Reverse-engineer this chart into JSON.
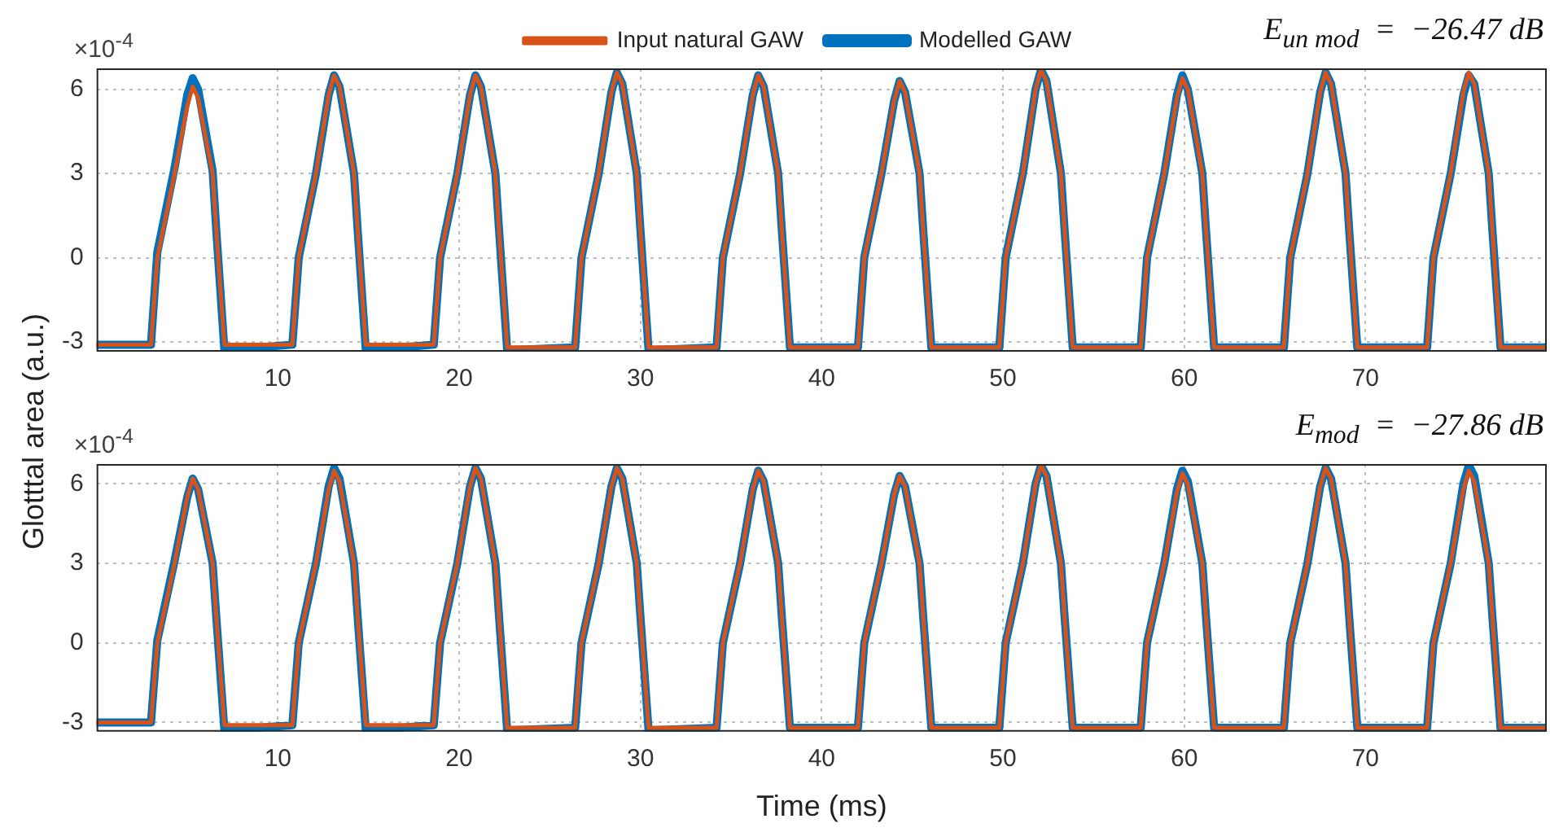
{
  "chart_data": [
    {
      "type": "line",
      "ylabel": "Glotttal area (a.u.)",
      "legend": "top",
      "grid": true,
      "marker": "none",
      "line_style": "solid",
      "annotations": [
        "×10$^{-4}$",
        "E$_{un mod}$  =  −26.47 dB"
      ],
      "xlim": [
        0,
        80
      ],
      "xticks": [
        10,
        20,
        30,
        40,
        50,
        60,
        70
      ],
      "ylim": [
        -3.35,
        6.75
      ],
      "yticks": [
        -3,
        0,
        3,
        6
      ],
      "x": [
        0,
        3.0,
        3.35,
        4.3,
        5.0,
        5.3,
        5.6,
        6.4,
        6.6,
        7.05,
        10.8,
        11.15,
        12.1,
        12.8,
        13.1,
        13.4,
        14.2,
        14.4,
        14.85,
        18.6,
        18.95,
        19.9,
        20.6,
        20.9,
        21.2,
        22.0,
        22.2,
        22.65,
        26.4,
        26.75,
        27.7,
        28.4,
        28.7,
        29.0,
        29.8,
        30.0,
        30.45,
        34.2,
        34.55,
        35.5,
        36.2,
        36.5,
        36.8,
        37.6,
        37.8,
        38.25,
        42.0,
        42.35,
        43.3,
        44.0,
        44.3,
        44.6,
        45.4,
        45.6,
        46.05,
        49.8,
        50.15,
        51.1,
        51.8,
        52.1,
        52.4,
        53.2,
        53.4,
        53.85,
        57.6,
        57.95,
        58.9,
        59.6,
        59.9,
        60.2,
        61.0,
        61.2,
        61.65,
        65.5,
        65.85,
        66.8,
        67.5,
        67.8,
        68.1,
        68.9,
        69.1,
        69.55,
        73.4,
        73.75,
        74.7,
        75.4,
        75.7,
        76.0,
        76.8,
        77.0,
        77.45,
        80
      ],
      "series": [
        {
          "name": "Input natural GAW",
          "color": "#d95319",
          "values": [
            -3.1,
            -3.1,
            0,
            3,
            5.4,
            6.1,
            5.7,
            3,
            1,
            -3.1,
            -3.1,
            0,
            3,
            5.8,
            6.5,
            6.1,
            3,
            1,
            -3.1,
            -3.1,
            0,
            3,
            5.8,
            6.5,
            6.1,
            3,
            1,
            -3.2,
            -3.2,
            0,
            3,
            5.9,
            6.6,
            6.2,
            3,
            1,
            -3.2,
            -3.2,
            0,
            3,
            5.8,
            6.5,
            6.1,
            3,
            1,
            -3.2,
            -3.2,
            0,
            3,
            5.6,
            6.3,
            5.9,
            3,
            1,
            -3.2,
            -3.2,
            0,
            3,
            6.0,
            6.7,
            6.3,
            3,
            1,
            -3.2,
            -3.2,
            0,
            3,
            5.7,
            6.4,
            6.0,
            3,
            1,
            -3.2,
            -3.2,
            0,
            3,
            5.9,
            6.6,
            6.2,
            3,
            1,
            -3.2,
            -3.2,
            0,
            3,
            5.9,
            6.6,
            6.2,
            3,
            1,
            -3.2,
            -3.2
          ]
        },
        {
          "name": "Modelled GAW",
          "color": "#0072bd",
          "values": [
            -3.1,
            -3.1,
            0.2,
            3.2,
            5.8,
            6.4,
            6.0,
            3.1,
            1,
            -3.3,
            -3.1,
            0,
            3,
            5.8,
            6.5,
            6.1,
            3,
            1,
            -3.3,
            -3.1,
            0,
            3,
            5.8,
            6.5,
            6.1,
            3,
            1,
            -3.3,
            -3.2,
            0,
            3,
            5.9,
            6.6,
            6.2,
            3,
            1,
            -3.3,
            -3.2,
            0,
            3,
            5.8,
            6.5,
            6.1,
            3,
            1,
            -3.2,
            -3.2,
            0,
            3,
            5.6,
            6.3,
            5.9,
            3,
            1,
            -3.2,
            -3.2,
            0,
            3,
            6.0,
            6.7,
            6.3,
            3,
            1,
            -3.2,
            -3.2,
            0,
            3,
            5.8,
            6.5,
            6.0,
            3,
            1,
            -3.2,
            -3.2,
            0,
            3,
            5.9,
            6.6,
            6.2,
            3,
            1,
            -3.2,
            -3.2,
            0,
            3,
            5.8,
            6.5,
            6.2,
            3,
            1,
            -3.2,
            -3.2
          ]
        }
      ]
    },
    {
      "type": "line",
      "xlabel": "Time (ms)",
      "legend": false,
      "grid": true,
      "marker": "none",
      "line_style": "solid",
      "annotations": [
        "×10$^{-4}$",
        "E$_{mod}$  =  −27.86 dB"
      ],
      "xlim": [
        0,
        80
      ],
      "xticks": [
        10,
        20,
        30,
        40,
        50,
        60,
        70
      ],
      "ylim": [
        -3.35,
        6.75
      ],
      "yticks": [
        -3,
        0,
        3,
        6
      ],
      "x": [
        0,
        3.0,
        3.35,
        4.3,
        5.0,
        5.3,
        5.6,
        6.4,
        6.6,
        7.05,
        10.8,
        11.15,
        12.1,
        12.8,
        13.1,
        13.4,
        14.2,
        14.4,
        14.85,
        18.6,
        18.95,
        19.9,
        20.6,
        20.9,
        21.2,
        22.0,
        22.2,
        22.65,
        26.4,
        26.75,
        27.7,
        28.4,
        28.7,
        29.0,
        29.8,
        30.0,
        30.45,
        34.2,
        34.55,
        35.5,
        36.2,
        36.5,
        36.8,
        37.6,
        37.8,
        38.25,
        42.0,
        42.35,
        43.3,
        44.0,
        44.3,
        44.6,
        45.4,
        45.6,
        46.05,
        49.8,
        50.15,
        51.1,
        51.8,
        52.1,
        52.4,
        53.2,
        53.4,
        53.85,
        57.6,
        57.95,
        58.9,
        59.6,
        59.9,
        60.2,
        61.0,
        61.2,
        61.65,
        65.5,
        65.85,
        66.8,
        67.5,
        67.8,
        68.1,
        68.9,
        69.1,
        69.55,
        73.4,
        73.75,
        74.7,
        75.4,
        75.7,
        76.0,
        76.8,
        77.0,
        77.45,
        80
      ],
      "series": [
        {
          "color": "#d95319",
          "values": [
            -3.0,
            -3.0,
            0,
            3,
            5.5,
            6.2,
            5.8,
            3,
            1,
            -3.1,
            -3.1,
            0,
            3,
            5.8,
            6.5,
            6.1,
            3,
            1,
            -3.1,
            -3.1,
            0,
            3,
            5.9,
            6.6,
            6.2,
            3,
            1,
            -3.2,
            -3.2,
            0,
            3,
            5.9,
            6.6,
            6.2,
            3,
            1,
            -3.2,
            -3.2,
            0,
            3,
            5.8,
            6.5,
            6.1,
            3,
            1,
            -3.2,
            -3.2,
            0,
            3,
            5.6,
            6.3,
            5.9,
            3,
            1,
            -3.2,
            -3.2,
            0,
            3,
            6.0,
            6.7,
            6.3,
            3,
            1,
            -3.2,
            -3.2,
            0,
            3,
            5.7,
            6.4,
            6.0,
            3,
            1,
            -3.2,
            -3.2,
            0,
            3,
            5.9,
            6.6,
            6.2,
            3,
            1,
            -3.2,
            -3.2,
            0,
            3,
            5.8,
            6.5,
            6.1,
            3,
            1,
            -3.2,
            -3.2
          ]
        },
        {
          "color": "#0072bd",
          "values": [
            -3.0,
            -3.0,
            0.1,
            3.1,
            5.5,
            6.2,
            5.8,
            3,
            1,
            -3.3,
            -3.1,
            0,
            3,
            5.9,
            6.6,
            6.2,
            3,
            1,
            -3.3,
            -3.1,
            0,
            3,
            5.9,
            6.6,
            6.2,
            3,
            1,
            -3.3,
            -3.2,
            0,
            3,
            5.9,
            6.6,
            6.2,
            3,
            1,
            -3.3,
            -3.2,
            0,
            3,
            5.8,
            6.5,
            6.1,
            3,
            1,
            -3.2,
            -3.2,
            0,
            3,
            5.6,
            6.3,
            5.9,
            3,
            1,
            -3.2,
            -3.2,
            0,
            3,
            6.0,
            6.7,
            6.3,
            3,
            1,
            -3.2,
            -3.2,
            0,
            3,
            5.8,
            6.5,
            6.1,
            3,
            1,
            -3.2,
            -3.2,
            0,
            3,
            5.9,
            6.6,
            6.2,
            3,
            1,
            -3.2,
            -3.2,
            0,
            3,
            6.0,
            6.7,
            6.3,
            3,
            1,
            -3.2,
            -3.2
          ]
        }
      ]
    }
  ]
}
